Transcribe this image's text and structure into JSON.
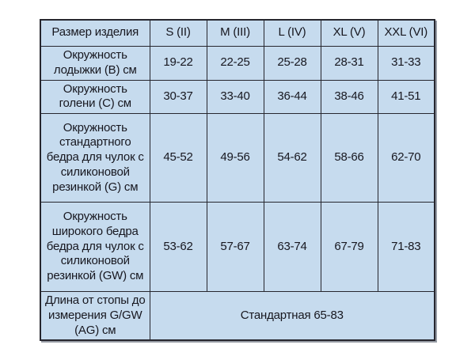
{
  "table": {
    "title_semantic": "size-chart",
    "header": {
      "corner": "Размер изделия",
      "sizes": [
        "S (II)",
        "M (III)",
        "L (IV)",
        "XL (V)",
        "XXL (VI)"
      ]
    },
    "rows": [
      {
        "label": "Окружность\nлодыжки (B) см",
        "values": [
          "19-22",
          "22-25",
          "25-28",
          "28-31",
          "31-33"
        ]
      },
      {
        "label": "Окружность\nголени (C) см",
        "values": [
          "30-37",
          "33-40",
          "36-44",
          "38-46",
          "41-51"
        ]
      },
      {
        "label": "Окружность\nстандартного\nбедра для чулок с\nсиликоновой\nрезинкой (G) см",
        "values": [
          "45-52",
          "49-56",
          "54-62",
          "58-66",
          "62-70"
        ]
      },
      {
        "label": "Окружность\nширокого бедра\nбедра для чулок с\nсиликоновой\nрезинкой (GW) см",
        "values": [
          "53-62",
          "57-67",
          "63-74",
          "67-79",
          "71-83"
        ]
      },
      {
        "label": "Длина от стопы до\nизмерения G/GW\n(AG) см",
        "span_value": "Стандартная 65-83"
      }
    ],
    "colors": {
      "cell_background": "#c6dbee",
      "border": "#26262e",
      "text": "#17171f",
      "page_background": "#ffffff"
    }
  }
}
